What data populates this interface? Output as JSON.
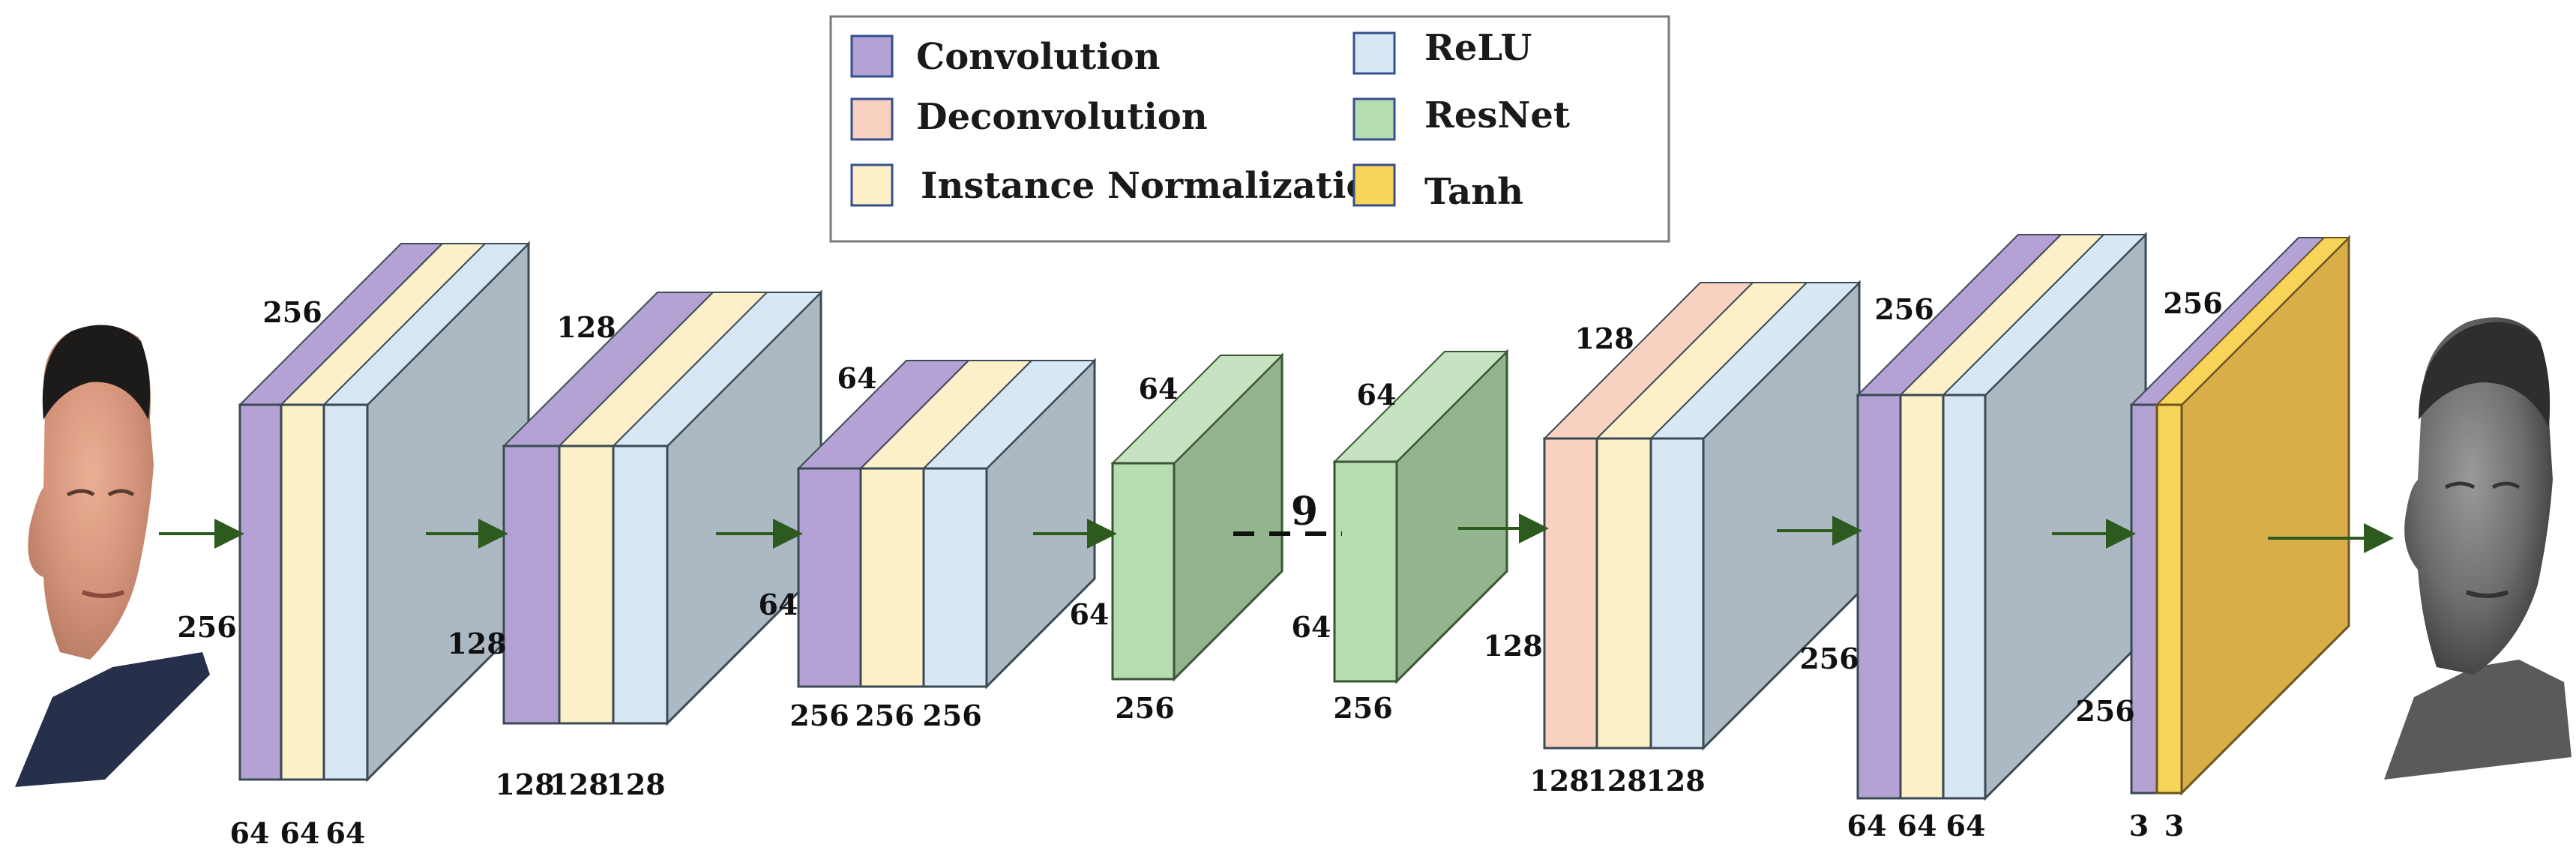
{
  "legend": {
    "convolution": "Convolution",
    "deconvolution": "Deconvolution",
    "instance_norm": "Instance Normalization",
    "relu": "ReLU",
    "resnet": "ResNet",
    "tanh": "Tanh"
  },
  "colors": {
    "convolution": "#b3a2d3",
    "deconvolution": "#f9d1c0",
    "instance_norm": "#fdf0c9",
    "relu": "#d8e7f4",
    "resnet": "#b6dcb1",
    "tanh": "#f8d458",
    "block_side": "#adb9c2",
    "resnet_side": "#93b58d",
    "tanh_side": "#d8ae48",
    "arrow": "#2c5a1f",
    "legend_border": "#7a7a7a"
  },
  "stages": {
    "b1": {
      "top": "256",
      "side": "256",
      "bottom": [
        "64",
        "64",
        "64"
      ]
    },
    "b2": {
      "top": "128",
      "side": "128",
      "bottom": [
        "128",
        "128",
        "128"
      ]
    },
    "b3": {
      "top": "64",
      "side": "64",
      "bottom": [
        "256",
        "256",
        "256"
      ]
    },
    "r1": {
      "top": "64",
      "side": "64",
      "bottom": "256"
    },
    "ellipsis": "9",
    "r2": {
      "top": "64",
      "side": "64",
      "bottom": "256"
    },
    "d1": {
      "top": "128",
      "side": "128",
      "bottom": [
        "128",
        "128",
        "128"
      ]
    },
    "d2": {
      "top": "256",
      "side": "256",
      "bottom": [
        "64",
        "64",
        "64"
      ]
    },
    "out": {
      "top": "256",
      "side": "256",
      "bottom": [
        "3",
        "3"
      ]
    }
  }
}
